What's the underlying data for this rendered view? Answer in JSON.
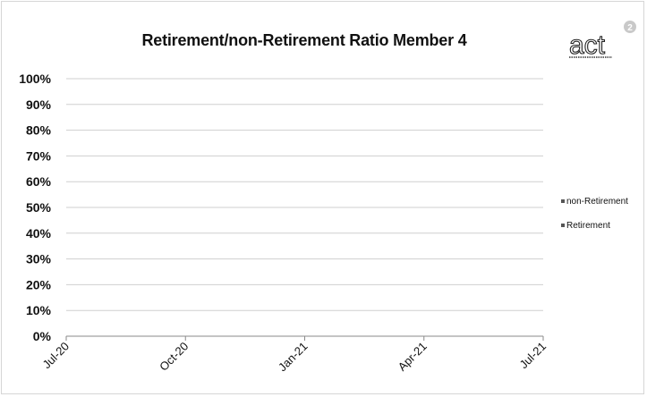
{
  "chart_data": {
    "type": "bar",
    "title": "Retirement/non-Retirement Ratio Member 4",
    "x_ticks": [
      "Jul-20",
      "Oct-20",
      "Jan-21",
      "Apr-21",
      "Jul-21"
    ],
    "y_ticks": [
      "100%",
      "90%",
      "80%",
      "70%",
      "60%",
      "50%",
      "40%",
      "30%",
      "20%",
      "10%",
      "0%"
    ],
    "ylim": [
      0,
      100
    ],
    "grid": true,
    "legend_position": "right",
    "series": [
      {
        "name": "non-Retirement",
        "values": []
      },
      {
        "name": "Retirement",
        "values": []
      }
    ]
  },
  "logo": {
    "text": "act",
    "badge": "2"
  },
  "colors": {
    "grid": "#cfcfcf",
    "axis": "#8a8a8a",
    "legend_marker": "#555555",
    "text": "#111111"
  }
}
